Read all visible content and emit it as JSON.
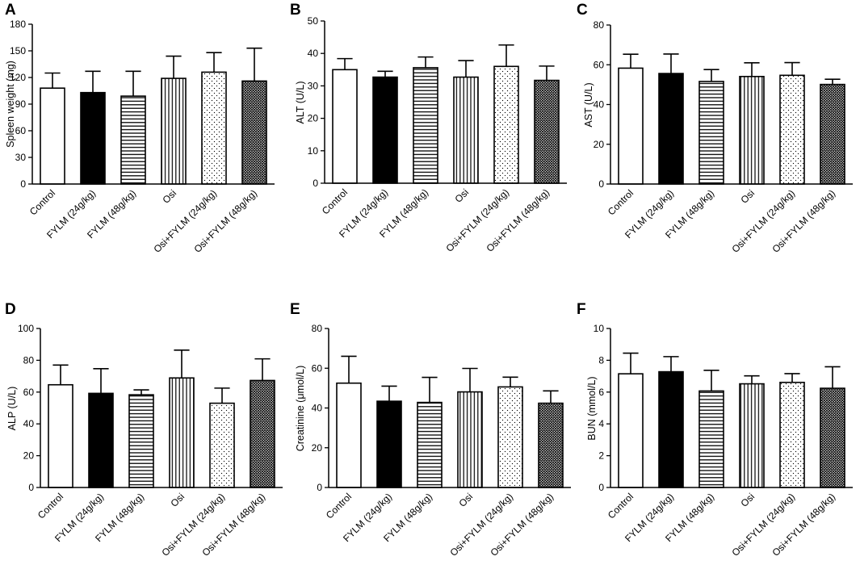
{
  "figure": {
    "categories": [
      "Control",
      "FYLM (24g/kg)",
      "FYLM (48g/kg)",
      "Osi",
      "Osi+FYLM (24g/kg)",
      "Osi+FYLM (48g/kg)"
    ],
    "fill_patterns": [
      "none",
      "solid",
      "horizontal-lines",
      "vertical-lines",
      "dots",
      "crosshatch"
    ]
  },
  "chart_data": [
    {
      "panel": "A",
      "type": "bar",
      "title": "",
      "xlabel": "",
      "ylabel": "Spleen weight (mg)",
      "ylim": [
        0,
        180
      ],
      "yticks": [
        0,
        30,
        60,
        90,
        120,
        150,
        180
      ],
      "categories": [
        "Control",
        "FYLM (24g/kg)",
        "FYLM (48g/kg)",
        "Osi",
        "Osi+FYLM (24g/kg)",
        "Osi+FYLM (48g/kg)"
      ],
      "values": [
        108,
        103,
        99,
        119,
        126,
        116
      ],
      "errors": [
        17,
        24,
        28,
        25,
        22,
        37
      ]
    },
    {
      "panel": "B",
      "type": "bar",
      "title": "",
      "xlabel": "",
      "ylabel": "ALT (U/L)",
      "ylim": [
        0,
        50
      ],
      "yticks": [
        0,
        10,
        20,
        30,
        40,
        50
      ],
      "categories": [
        "Control",
        "FYLM (24g/kg)",
        "FYLM (48g/kg)",
        "Osi",
        "Osi+FYLM (24g/kg)",
        "Osi+FYLM (48g/kg)"
      ],
      "values": [
        35,
        32.7,
        35.6,
        32.7,
        36,
        31.7
      ],
      "errors": [
        3.4,
        1.8,
        3.3,
        5.1,
        6.6,
        4.4
      ]
    },
    {
      "panel": "C",
      "type": "bar",
      "title": "",
      "xlabel": "",
      "ylabel": "AST (U/L)",
      "ylim": [
        0,
        80
      ],
      "yticks": [
        0,
        20,
        40,
        60,
        80
      ],
      "categories": [
        "Control",
        "FYLM (24g/kg)",
        "FYLM (48g/kg)",
        "Osi",
        "Osi+FYLM (24g/kg)",
        "Osi+FYLM (48g/kg)"
      ],
      "values": [
        58.3,
        55.6,
        51.6,
        54.1,
        54.7,
        50.1
      ],
      "errors": [
        7,
        9.8,
        6,
        6.9,
        6.4,
        2.6
      ]
    },
    {
      "panel": "D",
      "type": "bar",
      "title": "",
      "xlabel": "",
      "ylabel": "ALP (U/L)",
      "ylim": [
        0,
        100
      ],
      "yticks": [
        0,
        20,
        40,
        60,
        80,
        100
      ],
      "categories": [
        "Control",
        "FYLM (24g/kg)",
        "FYLM (48g/kg)",
        "Osi",
        "Osi+FYLM (24g/kg)",
        "Osi+FYLM (48g/kg)"
      ],
      "values": [
        64.6,
        59.2,
        58.3,
        68.9,
        53,
        67.3
      ],
      "errors": [
        12.4,
        15.5,
        3.1,
        17.5,
        9.5,
        13.6
      ]
    },
    {
      "panel": "E",
      "type": "bar",
      "title": "",
      "xlabel": "",
      "ylabel": "Creatinine (μmol/L)",
      "ylim": [
        0,
        80
      ],
      "yticks": [
        0,
        20,
        40,
        60,
        80
      ],
      "categories": [
        "Control",
        "FYLM (24g/kg)",
        "FYLM (48g/kg)",
        "Osi",
        "Osi+FYLM (24g/kg)",
        "Osi+FYLM (48g/kg)"
      ],
      "values": [
        52.5,
        43.4,
        42.8,
        48.1,
        50.6,
        42.4
      ],
      "errors": [
        13.5,
        7.6,
        12.6,
        11.8,
        4.9,
        6.2
      ]
    },
    {
      "panel": "F",
      "type": "bar",
      "title": "",
      "xlabel": "",
      "ylabel": "BUN (mmol/L)",
      "ylim": [
        0,
        10
      ],
      "yticks": [
        0,
        2,
        4,
        6,
        8,
        10
      ],
      "categories": [
        "Control",
        "FYLM (24g/kg)",
        "FYLM (48g/kg)",
        "Osi",
        "Osi+FYLM (24g/kg)",
        "Osi+FYLM (48g/kg)"
      ],
      "values": [
        7.15,
        7.28,
        6.07,
        6.52,
        6.61,
        6.24
      ],
      "errors": [
        1.3,
        0.95,
        1.3,
        0.5,
        0.55,
        1.35
      ]
    }
  ]
}
